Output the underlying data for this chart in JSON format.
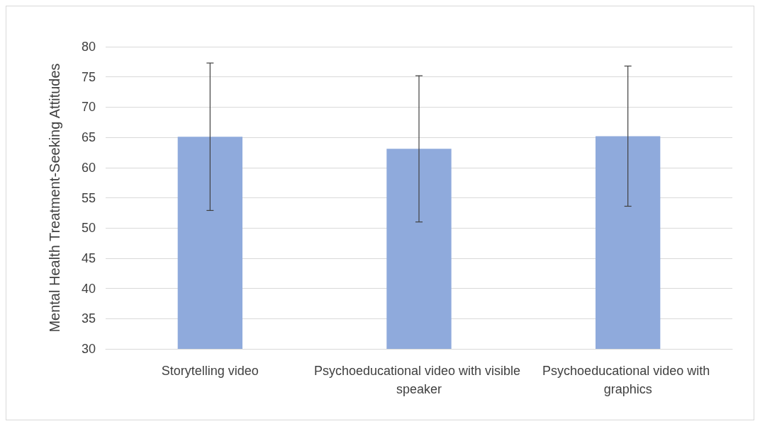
{
  "chart_data": {
    "type": "bar",
    "ylabel": "Mental Health Treatment-Seeking Attitudes",
    "categories": [
      "Storytelling video",
      "Psychoeducational video with visible speaker",
      "Psychoeducational video with graphics"
    ],
    "values": [
      65.1,
      63.1,
      65.2
    ],
    "errors": [
      12.2,
      12.1,
      11.6
    ],
    "color": "#8faadc",
    "ylim": [
      30,
      80
    ],
    "yticks": [
      30,
      35,
      40,
      45,
      50,
      55,
      60,
      65,
      70,
      75,
      80
    ],
    "grid": "y"
  }
}
